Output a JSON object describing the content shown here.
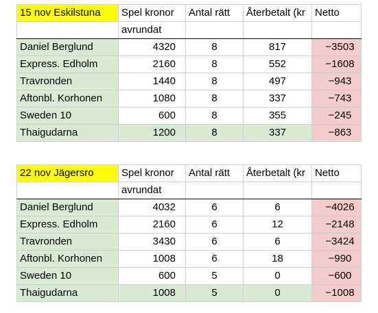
{
  "tables": [
    {
      "title": "15 nov Eskilstuna",
      "headers": [
        "Spel kronor",
        "Antal rätt",
        "Återbetalt (kr",
        "Netto"
      ],
      "subheader": "avrundat",
      "rows": [
        {
          "name": "Daniel Berglund",
          "spel": "4320",
          "ratt": "8",
          "aterbetalt": "817",
          "netto": "−3503",
          "highlight": false
        },
        {
          "name": "Express. Edholm",
          "spel": "2160",
          "ratt": "8",
          "aterbetalt": "552",
          "netto": "−1608",
          "highlight": false
        },
        {
          "name": "Travronden",
          "spel": "1440",
          "ratt": "8",
          "aterbetalt": "497",
          "netto": "−943",
          "highlight": false
        },
        {
          "name": "Aftonbl. Korhonen",
          "spel": "1080",
          "ratt": "8",
          "aterbetalt": "337",
          "netto": "−743",
          "highlight": false
        },
        {
          "name": "Sweden 10",
          "spel": "600",
          "ratt": "8",
          "aterbetalt": "355",
          "netto": "−245",
          "highlight": false
        },
        {
          "name": "Thaigudarna",
          "spel": "1200",
          "ratt": "8",
          "aterbetalt": "337",
          "netto": "−863",
          "highlight": true
        }
      ]
    },
    {
      "title": "22 nov Jägersro",
      "headers": [
        "Spel kronor",
        "Antal rätt",
        "Återbetalt (kr",
        "Netto"
      ],
      "subheader": "avrundat",
      "rows": [
        {
          "name": "Daniel Berglund",
          "spel": "4032",
          "ratt": "6",
          "aterbetalt": "6",
          "netto": "−4026",
          "highlight": false
        },
        {
          "name": "Express. Edholm",
          "spel": "2160",
          "ratt": "6",
          "aterbetalt": "12",
          "netto": "−2148",
          "highlight": false
        },
        {
          "name": "Travronden",
          "spel": "3430",
          "ratt": "6",
          "aterbetalt": "6",
          "netto": "−3424",
          "highlight": false
        },
        {
          "name": "Aftonbl. Korhonen",
          "spel": "1008",
          "ratt": "6",
          "aterbetalt": "18",
          "netto": "−990",
          "highlight": false
        },
        {
          "name": "Sweden 10",
          "spel": "600",
          "ratt": "5",
          "aterbetalt": "0",
          "netto": "−600",
          "highlight": false
        },
        {
          "name": "Thaigudarna",
          "spel": "1008",
          "ratt": "5",
          "aterbetalt": "0",
          "netto": "−1008",
          "highlight": true
        }
      ]
    }
  ],
  "colors": {
    "title_bg": "#ffff00",
    "name_bg": "#d9ead3",
    "negative_bg": "#f4cccc"
  }
}
